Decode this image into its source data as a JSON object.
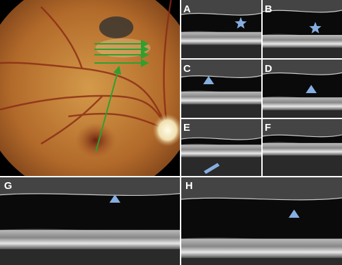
{
  "panel_labels": [
    "A",
    "B",
    "C",
    "D",
    "E",
    "F",
    "G",
    "H"
  ]
}
